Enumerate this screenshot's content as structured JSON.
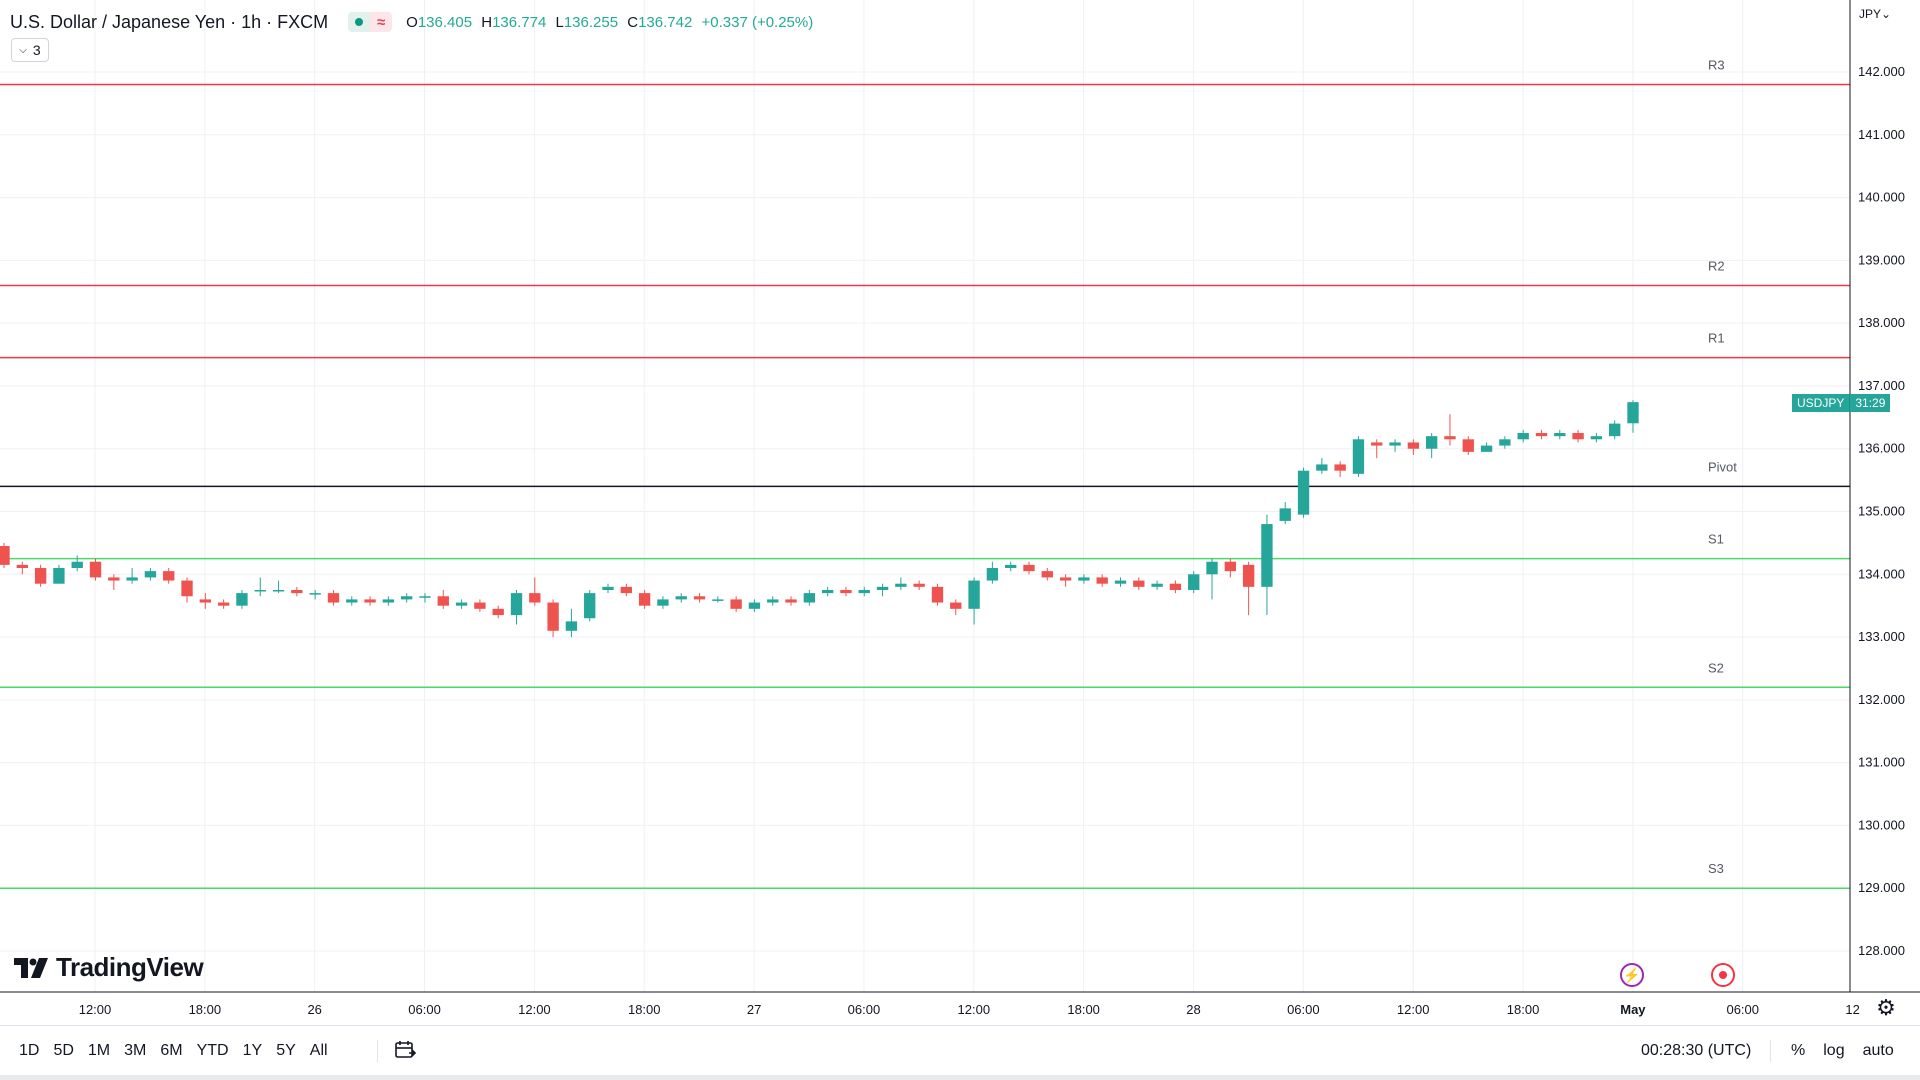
{
  "header": {
    "title": "U.S. Dollar / Japanese Yen · 1h · FXCM",
    "ohlc": {
      "o_label": "O",
      "o": "136.405",
      "h_label": "H",
      "h": "136.774",
      "l_label": "L",
      "l": "136.255",
      "c_label": "C",
      "c": "136.742",
      "change": "+0.337 (+0.25%)"
    },
    "indicator_count": "3",
    "market_status_icon": "market-open-dot-icon",
    "data_icon": "wave-icon"
  },
  "currency_selector": "JPY",
  "price_tag": {
    "symbol": "USDJPY",
    "countdown": "31:29"
  },
  "logo_text": "TradingView",
  "bottom_bar": {
    "ranges": [
      "1D",
      "5D",
      "1M",
      "3M",
      "6M",
      "YTD",
      "1Y",
      "5Y",
      "All"
    ],
    "clock": "00:28:30 (UTC)",
    "options": [
      "%",
      "log",
      "auto"
    ]
  },
  "colors": {
    "up": "#26a69a",
    "down": "#ef5350",
    "resistance": "#f23645",
    "support": "#4cd964",
    "pivot": "#131722",
    "grid": "#eef0f3"
  },
  "chart_data": {
    "type": "candlestick",
    "symbol": "USDJPY",
    "interval": "1h",
    "ylim": [
      127.3,
      142.9
    ],
    "y_ticks": [
      "128.000",
      "129.000",
      "130.000",
      "131.000",
      "132.000",
      "133.000",
      "134.000",
      "135.000",
      "136.000",
      "137.000",
      "138.000",
      "139.000",
      "140.000",
      "141.000",
      "142.000"
    ],
    "x_ticks": [
      "12:00",
      "18:00",
      "26",
      "06:00",
      "12:00",
      "18:00",
      "27",
      "06:00",
      "12:00",
      "18:00",
      "28",
      "06:00",
      "12:00",
      "18:00",
      "May",
      "06:00",
      "12"
    ],
    "levels": [
      {
        "label": "R3",
        "value": 141.8,
        "kind": "resistance"
      },
      {
        "label": "R2",
        "value": 138.6,
        "kind": "resistance"
      },
      {
        "label": "R1",
        "value": 137.45,
        "kind": "resistance"
      },
      {
        "label": "Pivot",
        "value": 135.4,
        "kind": "pivot"
      },
      {
        "label": "S1",
        "value": 134.25,
        "kind": "support"
      },
      {
        "label": "S2",
        "value": 132.2,
        "kind": "support"
      },
      {
        "label": "S3",
        "value": 129.0,
        "kind": "support"
      }
    ],
    "candles": [
      [
        134.45,
        134.15,
        134.5,
        134.1
      ],
      [
        134.15,
        134.1,
        134.2,
        134.0
      ],
      [
        134.1,
        133.85,
        134.15,
        133.8
      ],
      [
        133.85,
        134.1,
        134.15,
        133.85
      ],
      [
        134.1,
        134.2,
        134.3,
        134.05
      ],
      [
        134.2,
        133.95,
        134.25,
        133.9
      ],
      [
        133.95,
        133.9,
        134.0,
        133.75
      ],
      [
        133.9,
        133.95,
        134.1,
        133.85
      ],
      [
        133.95,
        134.05,
        134.1,
        133.9
      ],
      [
        134.05,
        133.9,
        134.1,
        133.85
      ],
      [
        133.9,
        133.65,
        133.95,
        133.55
      ],
      [
        133.6,
        133.55,
        133.7,
        133.45
      ],
      [
        133.55,
        133.5,
        133.6,
        133.45
      ],
      [
        133.5,
        133.7,
        133.75,
        133.45
      ],
      [
        133.75,
        133.75,
        133.95,
        133.65
      ],
      [
        133.75,
        133.75,
        133.9,
        133.7
      ],
      [
        133.75,
        133.7,
        133.8,
        133.65
      ],
      [
        133.7,
        133.7,
        133.75,
        133.6
      ],
      [
        133.7,
        133.55,
        133.75,
        133.5
      ],
      [
        133.55,
        133.6,
        133.65,
        133.5
      ],
      [
        133.6,
        133.55,
        133.65,
        133.5
      ],
      [
        133.55,
        133.6,
        133.65,
        133.5
      ],
      [
        133.6,
        133.65,
        133.7,
        133.55
      ],
      [
        133.65,
        133.65,
        133.7,
        133.55
      ],
      [
        133.65,
        133.5,
        133.75,
        133.45
      ],
      [
        133.5,
        133.55,
        133.6,
        133.45
      ],
      [
        133.55,
        133.45,
        133.6,
        133.4
      ],
      [
        133.45,
        133.35,
        133.5,
        133.3
      ],
      [
        133.35,
        133.7,
        133.75,
        133.2
      ],
      [
        133.7,
        133.55,
        133.95,
        133.5
      ],
      [
        133.55,
        133.1,
        133.6,
        133.0
      ],
      [
        133.1,
        133.25,
        133.45,
        133.0
      ],
      [
        133.3,
        133.7,
        133.75,
        133.25
      ],
      [
        133.75,
        133.8,
        133.85,
        133.7
      ],
      [
        133.8,
        133.7,
        133.85,
        133.65
      ],
      [
        133.7,
        133.5,
        133.75,
        133.45
      ],
      [
        133.5,
        133.6,
        133.65,
        133.45
      ],
      [
        133.6,
        133.65,
        133.7,
        133.55
      ],
      [
        133.65,
        133.6,
        133.7,
        133.55
      ],
      [
        133.6,
        133.6,
        133.65,
        133.55
      ],
      [
        133.6,
        133.45,
        133.65,
        133.4
      ],
      [
        133.45,
        133.55,
        133.6,
        133.4
      ],
      [
        133.55,
        133.6,
        133.65,
        133.5
      ],
      [
        133.6,
        133.55,
        133.65,
        133.5
      ],
      [
        133.55,
        133.7,
        133.75,
        133.5
      ],
      [
        133.7,
        133.75,
        133.8,
        133.65
      ],
      [
        133.75,
        133.7,
        133.8,
        133.65
      ],
      [
        133.7,
        133.75,
        133.8,
        133.65
      ],
      [
        133.75,
        133.8,
        133.85,
        133.65
      ],
      [
        133.8,
        133.85,
        133.95,
        133.75
      ],
      [
        133.85,
        133.8,
        133.9,
        133.75
      ],
      [
        133.8,
        133.55,
        133.85,
        133.5
      ],
      [
        133.55,
        133.45,
        133.6,
        133.35
      ],
      [
        133.45,
        133.9,
        133.95,
        133.2
      ],
      [
        133.9,
        134.1,
        134.2,
        133.85
      ],
      [
        134.1,
        134.15,
        134.2,
        134.05
      ],
      [
        134.15,
        134.05,
        134.2,
        134.0
      ],
      [
        134.05,
        133.95,
        134.1,
        133.9
      ],
      [
        133.95,
        133.9,
        134.0,
        133.8
      ],
      [
        133.9,
        133.95,
        134.0,
        133.85
      ],
      [
        133.95,
        133.85,
        134.0,
        133.8
      ],
      [
        133.85,
        133.9,
        133.95,
        133.8
      ],
      [
        133.9,
        133.8,
        133.95,
        133.75
      ],
      [
        133.8,
        133.85,
        133.9,
        133.75
      ],
      [
        133.85,
        133.75,
        133.9,
        133.7
      ],
      [
        133.75,
        134.0,
        134.05,
        133.7
      ],
      [
        134.0,
        134.2,
        134.25,
        133.6
      ],
      [
        134.2,
        134.05,
        134.25,
        133.95
      ],
      [
        134.15,
        133.8,
        134.2,
        133.35
      ],
      [
        133.8,
        134.8,
        134.95,
        133.35
      ],
      [
        134.85,
        135.05,
        135.15,
        134.8
      ],
      [
        134.95,
        135.65,
        135.7,
        134.9
      ],
      [
        135.65,
        135.75,
        135.85,
        135.6
      ],
      [
        135.75,
        135.65,
        135.8,
        135.55
      ],
      [
        135.6,
        136.15,
        136.2,
        135.55
      ],
      [
        136.1,
        136.05,
        136.15,
        135.85
      ],
      [
        136.05,
        136.1,
        136.15,
        135.95
      ],
      [
        136.1,
        136.0,
        136.15,
        135.9
      ],
      [
        136.0,
        136.2,
        136.25,
        135.85
      ],
      [
        136.2,
        136.15,
        136.55,
        136.05
      ],
      [
        136.15,
        135.95,
        136.2,
        135.9
      ],
      [
        135.95,
        136.05,
        136.1,
        135.95
      ],
      [
        136.05,
        136.15,
        136.2,
        136.0
      ],
      [
        136.15,
        136.25,
        136.3,
        136.1
      ],
      [
        136.25,
        136.2,
        136.3,
        136.15
      ],
      [
        136.2,
        136.25,
        136.3,
        136.15
      ],
      [
        136.25,
        136.15,
        136.3,
        136.1
      ],
      [
        136.15,
        136.2,
        136.25,
        136.1
      ],
      [
        136.2,
        136.4,
        136.45,
        136.15
      ],
      [
        136.405,
        136.742,
        136.774,
        136.255
      ]
    ]
  }
}
